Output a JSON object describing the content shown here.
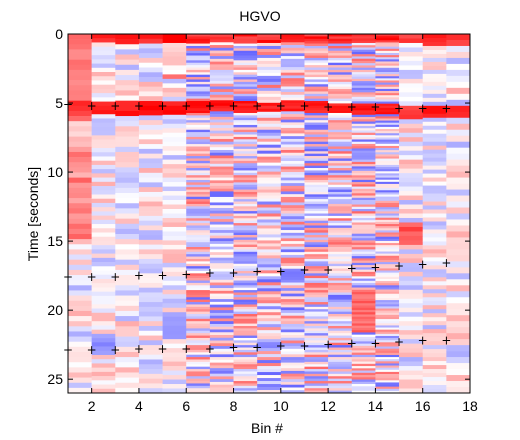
{
  "chart_data": {
    "type": "heatmap",
    "title": "HGVO",
    "xlabel": "Bin #",
    "ylabel": "Time [seconds]",
    "xlim": [
      1,
      18
    ],
    "ylim": [
      26,
      0
    ],
    "y_reversed": true,
    "x_ticks": [
      "2",
      "4",
      "6",
      "8",
      "10",
      "12",
      "14",
      "16",
      "18"
    ],
    "y_ticks": [
      "0",
      "5",
      "10",
      "15",
      "20",
      "25"
    ],
    "n_bins": 17,
    "colormap": [
      "#0000ff",
      "#ffffff",
      "#ff0000"
    ],
    "marker_symbol": "+",
    "marker_series": [
      {
        "x": [
          1,
          2,
          3,
          4,
          5,
          6,
          7,
          8,
          9,
          10,
          11,
          12,
          13,
          14,
          15,
          16,
          17
        ],
        "y": [
          5.1,
          5.2,
          5.2,
          5.2,
          5.2,
          5.2,
          5.2,
          5.2,
          5.2,
          5.2,
          5.2,
          5.3,
          5.3,
          5.3,
          5.4,
          5.4,
          5.4
        ]
      },
      {
        "x": [
          1,
          2,
          3,
          4,
          5,
          6,
          7,
          8,
          9,
          10,
          11,
          12,
          13,
          14,
          15,
          16,
          17
        ],
        "y": [
          17.6,
          17.6,
          17.6,
          17.5,
          17.5,
          17.4,
          17.3,
          17.3,
          17.2,
          17.2,
          17.1,
          17.1,
          17.0,
          16.9,
          16.8,
          16.7,
          16.6
        ]
      },
      {
        "x": [
          1,
          2,
          3,
          4,
          5,
          6,
          7,
          8,
          9,
          10,
          11,
          12,
          13,
          14,
          15,
          16,
          17
        ],
        "y": [
          22.9,
          22.9,
          22.9,
          22.8,
          22.8,
          22.8,
          22.8,
          22.7,
          22.7,
          22.6,
          22.6,
          22.5,
          22.4,
          22.4,
          22.3,
          22.2,
          22.2
        ]
      }
    ],
    "approximate_features": [
      {
        "bin": 1,
        "from": 0,
        "to": 6,
        "value": 0.6
      },
      {
        "bin": 17,
        "from": 0,
        "to": 0.6,
        "value": 1.0
      },
      {
        "bin": 1,
        "from": 4.8,
        "to": 5.8,
        "value": 0.9
      },
      {
        "bin": 15,
        "from": 5.0,
        "to": 6.0,
        "value": 1.0
      },
      {
        "bin": 15,
        "from": 13.6,
        "to": 15.0,
        "value": 0.8
      },
      {
        "bin": 13,
        "from": 18.5,
        "to": 21.5,
        "value": 0.7
      },
      {
        "bin": 5,
        "from": 20.0,
        "to": 22.0,
        "value": -0.5
      },
      {
        "bin": 2,
        "from": 21.5,
        "to": 23.0,
        "value": -0.5
      }
    ]
  }
}
